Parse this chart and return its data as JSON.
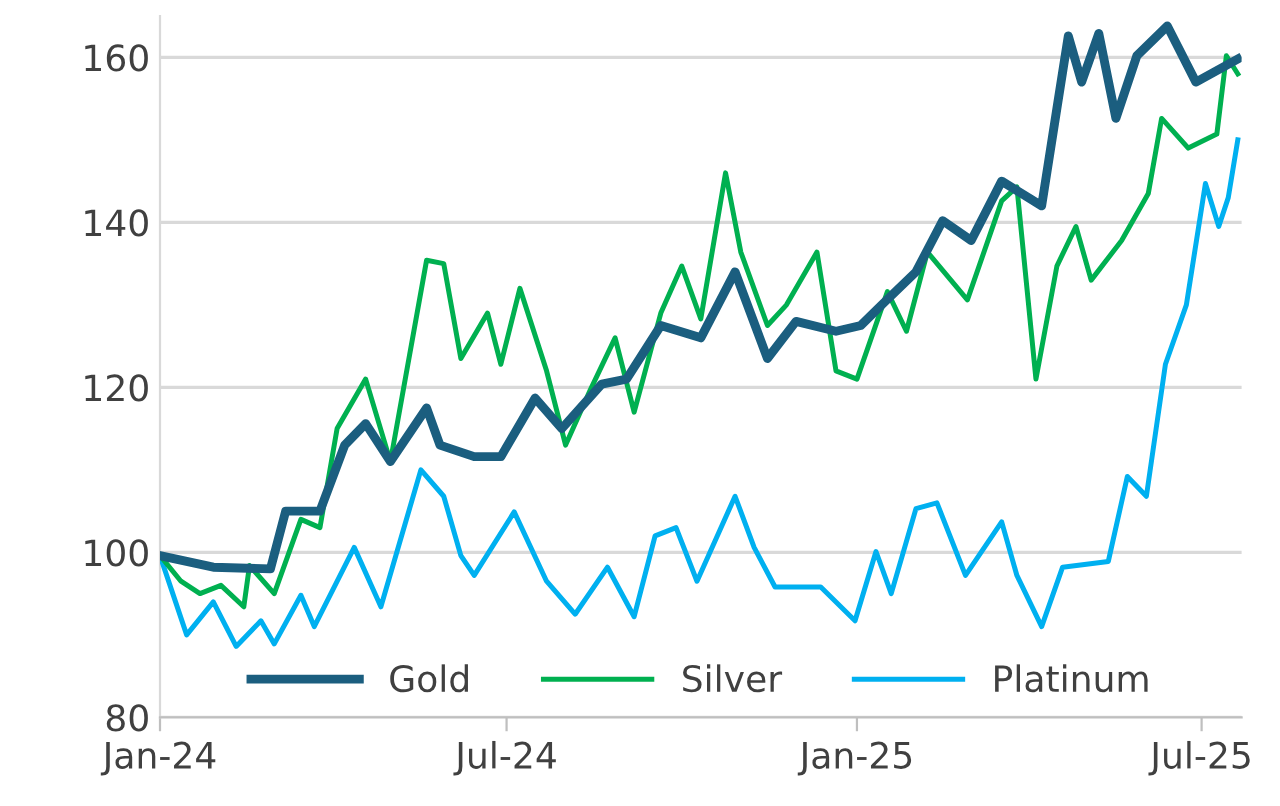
{
  "chart_data": {
    "type": "line",
    "xlim": [
      "2024-01-01",
      "2025-07-22"
    ],
    "xticks": [
      {
        "value": "2024-01-01",
        "label": "Jan-24"
      },
      {
        "value": "2024-07-01",
        "label": "Jul-24"
      },
      {
        "value": "2025-01-01",
        "label": "Jan-25"
      },
      {
        "value": "2025-07-01",
        "label": "Jul-25"
      }
    ],
    "ylim": [
      80,
      165
    ],
    "yticks": [
      80,
      100,
      120,
      140,
      160
    ],
    "grid": "y",
    "legend": "bottom",
    "marker": "none",
    "line_style": "solid",
    "series": [
      {
        "name": "Gold",
        "color": "#1b5e7f",
        "x": [
          "2024-01-01",
          "2024-01-29",
          "2024-02-28",
          "2024-03-07",
          "2024-03-25",
          "2024-04-07",
          "2024-04-18",
          "2024-05-01",
          "2024-05-20",
          "2024-05-27",
          "2024-06-14",
          "2024-06-28",
          "2024-07-16",
          "2024-07-30",
          "2024-08-20",
          "2024-09-02",
          "2024-09-20",
          "2024-10-11",
          "2024-10-29",
          "2024-11-15",
          "2024-11-30",
          "2024-12-21",
          "2025-01-03",
          "2025-01-14",
          "2025-02-01",
          "2025-02-15",
          "2025-03-02",
          "2025-03-18",
          "2025-04-08",
          "2025-04-16",
          "2025-04-22",
          "2025-04-29",
          "2025-05-08",
          "2025-05-17",
          "2025-05-28",
          "2025-06-13",
          "2025-06-28",
          "2025-07-20"
        ],
        "values": [
          99.6,
          98.2,
          98,
          105,
          105,
          113,
          115.6,
          111,
          117.5,
          113,
          111.6,
          111.6,
          118.7,
          115,
          120.4,
          121,
          127.5,
          126,
          134,
          123.5,
          128,
          126.8,
          127.5,
          130,
          134,
          140.2,
          137.8,
          145,
          142,
          153.8,
          162.6,
          157,
          162.9,
          152.6,
          160.2,
          163.8,
          157,
          159.8
        ]
      },
      {
        "name": "Silver",
        "color": "#00b050",
        "x": [
          "2024-01-01",
          "2024-01-12",
          "2024-01-22",
          "2024-02-02",
          "2024-02-14",
          "2024-02-17",
          "2024-03-01",
          "2024-03-15",
          "2024-03-25",
          "2024-04-03",
          "2024-04-18",
          "2024-05-01",
          "2024-05-20",
          "2024-05-29",
          "2024-06-07",
          "2024-06-21",
          "2024-06-28",
          "2024-07-08",
          "2024-07-22",
          "2024-08-01",
          "2024-08-14",
          "2024-08-27",
          "2024-09-06",
          "2024-09-20",
          "2024-10-01",
          "2024-10-11",
          "2024-10-24",
          "2024-11-01",
          "2024-11-15",
          "2024-11-25",
          "2024-12-11",
          "2024-12-21",
          "2025-01-01",
          "2025-01-17",
          "2025-01-27",
          "2025-02-07",
          "2025-02-28",
          "2025-03-18",
          "2025-03-26",
          "2025-04-05",
          "2025-04-16",
          "2025-04-26",
          "2025-05-04",
          "2025-05-20",
          "2025-06-03",
          "2025-06-10",
          "2025-06-24",
          "2025-07-09",
          "2025-07-14",
          "2025-07-20"
        ],
        "values": [
          99.6,
          96.5,
          95,
          96,
          93.4,
          98.4,
          95,
          104,
          103,
          115,
          121,
          111,
          135.4,
          135,
          123.5,
          129,
          122.8,
          132,
          122,
          113,
          119.7,
          126,
          117,
          129,
          134.7,
          128.3,
          146,
          136.4,
          127.5,
          130,
          136.4,
          122,
          121,
          131.6,
          126.8,
          136.4,
          130.6,
          142.6,
          144.3,
          121,
          134.7,
          139.5,
          133,
          137.8,
          143.5,
          152.6,
          149,
          150.7,
          160.2,
          158
        ]
      },
      {
        "name": "Platinum",
        "color": "#00b0f0",
        "x": [
          "2024-01-01",
          "2024-01-15",
          "2024-01-29",
          "2024-02-10",
          "2024-02-23",
          "2024-03-01",
          "2024-03-15",
          "2024-03-22",
          "2024-04-12",
          "2024-04-26",
          "2024-05-17",
          "2024-05-29",
          "2024-06-07",
          "2024-06-14",
          "2024-07-05",
          "2024-07-22",
          "2024-08-06",
          "2024-08-23",
          "2024-09-06",
          "2024-09-17",
          "2024-09-28",
          "2024-10-09",
          "2024-10-29",
          "2024-11-08",
          "2024-11-19",
          "2024-12-13",
          "2024-12-31",
          "2025-01-11",
          "2025-01-19",
          "2025-02-01",
          "2025-02-12",
          "2025-02-27",
          "2025-03-18",
          "2025-03-26",
          "2025-04-08",
          "2025-04-19",
          "2025-05-13",
          "2025-05-23",
          "2025-06-02",
          "2025-06-12",
          "2025-06-23",
          "2025-07-03",
          "2025-07-10",
          "2025-07-15",
          "2025-07-20"
        ],
        "values": [
          99.6,
          90,
          94,
          88.6,
          91.7,
          88.9,
          94.8,
          91,
          100.6,
          93.4,
          110,
          106.8,
          99.6,
          97.2,
          104.9,
          96.5,
          92.5,
          98.2,
          92.2,
          102,
          103,
          96.5,
          106.8,
          100.6,
          95.8,
          95.8,
          91.7,
          100.1,
          95,
          105.3,
          106,
          97.2,
          103.7,
          97.2,
          91,
          98.2,
          98.9,
          109.2,
          106.8,
          122.8,
          130,
          144.7,
          139.5,
          143,
          150
        ]
      }
    ]
  }
}
